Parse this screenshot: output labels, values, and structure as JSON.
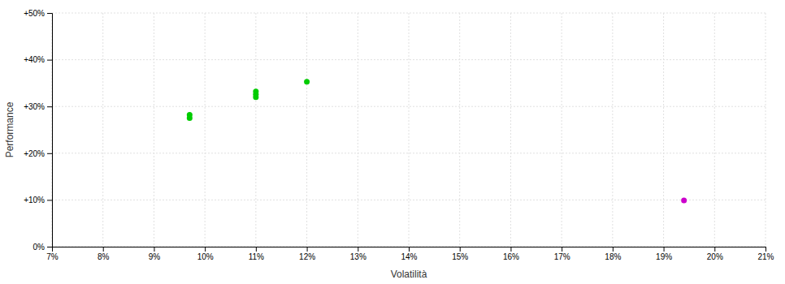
{
  "chart_data": {
    "type": "scatter",
    "xlabel": "Volatilità",
    "ylabel": "Performance",
    "series": [
      {
        "color": "#00cc00",
        "x": [
          0.097,
          0.097,
          0.11,
          0.11,
          0.11,
          0.12
        ],
        "values": [
          0.275,
          0.282,
          0.32,
          0.326,
          0.332,
          0.353
        ]
      },
      {
        "color": "#cc00cc",
        "x": [
          0.194
        ],
        "values": [
          0.099
        ]
      }
    ],
    "xlim": [
      0.07,
      0.21
    ],
    "ylim": [
      0.0,
      0.5
    ],
    "xticks": [
      {
        "value": 0.07,
        "label": "7%"
      },
      {
        "value": 0.08,
        "label": "8%"
      },
      {
        "value": 0.09,
        "label": "9%"
      },
      {
        "value": 0.1,
        "label": "10%"
      },
      {
        "value": 0.11,
        "label": "11%"
      },
      {
        "value": 0.12,
        "label": "12%"
      },
      {
        "value": 0.13,
        "label": "13%"
      },
      {
        "value": 0.14,
        "label": "14%"
      },
      {
        "value": 0.15,
        "label": "15%"
      },
      {
        "value": 0.16,
        "label": "16%"
      },
      {
        "value": 0.17,
        "label": "17%"
      },
      {
        "value": 0.18,
        "label": "18%"
      },
      {
        "value": 0.19,
        "label": "19%"
      },
      {
        "value": 0.2,
        "label": "20%"
      },
      {
        "value": 0.21,
        "label": "21%"
      }
    ],
    "yticks": [
      {
        "value": 0.0,
        "label": "0%"
      },
      {
        "value": 0.1,
        "label": "+10%"
      },
      {
        "value": 0.2,
        "label": "+20%"
      },
      {
        "value": 0.3,
        "label": "+30%"
      },
      {
        "value": 0.4,
        "label": "+40%"
      },
      {
        "value": 0.5,
        "label": "+50%"
      }
    ],
    "grid": true
  }
}
